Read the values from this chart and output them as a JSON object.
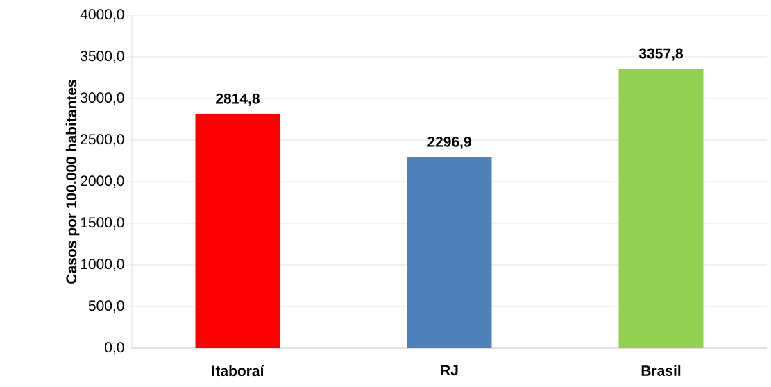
{
  "chart_data": {
    "type": "bar",
    "ylabel": "Casos por 100.000 habitantes",
    "categories": [
      "Itaboraí",
      "RJ",
      "Brasil"
    ],
    "values": [
      2814.8,
      2296.9,
      3357.8
    ],
    "colors": [
      "#ff0000",
      "#4f81bd",
      "#92d050"
    ],
    "value_labels": [
      "2814,8",
      "2296,9",
      "3357,8"
    ],
    "ylim": [
      0,
      4000
    ],
    "yticks": [
      {
        "value": 0,
        "label": "0,0"
      },
      {
        "value": 500,
        "label": "500,0"
      },
      {
        "value": 1000,
        "label": "1000,0"
      },
      {
        "value": 1500,
        "label": "1500,0"
      },
      {
        "value": 2000,
        "label": "2000,0"
      },
      {
        "value": 2500,
        "label": "2500,0"
      },
      {
        "value": 3000,
        "label": "3000,0"
      },
      {
        "value": 3500,
        "label": "3500,0"
      },
      {
        "value": 4000,
        "label": "4000,0"
      }
    ],
    "grid": "y"
  }
}
